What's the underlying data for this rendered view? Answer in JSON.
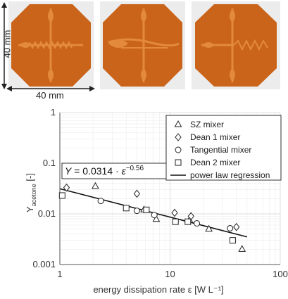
{
  "dimensions": {
    "vertical": "40 mm",
    "horizontal": "40 mm"
  },
  "photo": {
    "chip_color": "#c9641a",
    "channel_color": "#e48a3c",
    "background_color": "#ececec",
    "mixer_patterns": [
      "zigzag",
      "dean-curve",
      "tangential-serpentine"
    ]
  },
  "chart_data": {
    "type": "scatter",
    "xlabel": "energy dissipation rate ε [W L⁻¹]",
    "ylabel_main": "Y",
    "ylabel_sub": "acetone",
    "ylabel_unit": " [-]",
    "xscale": "log",
    "yscale": "log",
    "xlim": [
      1,
      100
    ],
    "ylim": [
      0.001,
      1
    ],
    "x_ticks": [
      1,
      10,
      100
    ],
    "x_tick_labels": [
      "1",
      "10",
      "100"
    ],
    "y_ticks": [
      0.001,
      0.01,
      0.1,
      1
    ],
    "y_tick_labels": [
      "0.001",
      "0.01",
      "0.1",
      "1"
    ],
    "grid": true,
    "legend_position": "top-right",
    "annotation": {
      "lhs": "Y",
      "equals": " = 0.0314 · ",
      "base": "ε",
      "exponent": "−0.56"
    },
    "series": [
      {
        "name": "SZ mixer",
        "marker": "triangle",
        "x": [
          2.1,
          5.8,
          7.5,
          15.0,
          22.5,
          45.0
        ],
        "y": [
          0.035,
          0.012,
          0.0078,
          0.0075,
          0.005,
          0.002
        ]
      },
      {
        "name": "Dean 1 mixer",
        "marker": "diamond",
        "x": [
          1.15,
          5.0,
          11.0,
          15.5,
          40.0
        ],
        "y": [
          0.033,
          0.025,
          0.0105,
          0.009,
          0.0055
        ]
      },
      {
        "name": "Tangential mixer",
        "marker": "circle",
        "x": [
          2.35,
          5.0,
          7.2,
          17.5,
          35.0
        ],
        "y": [
          0.018,
          0.0115,
          0.0095,
          0.0065,
          0.0052
        ]
      },
      {
        "name": "Dean 2 mixer",
        "marker": "square",
        "x": [
          1.05,
          4.0,
          6.1,
          11.2,
          14.5,
          37.0
        ],
        "y": [
          0.023,
          0.013,
          0.012,
          0.007,
          0.007,
          0.003
        ]
      }
    ],
    "regression": {
      "name": "power law regression",
      "coefficient": 0.0314,
      "exponent": -0.56,
      "x_range": [
        1,
        50
      ]
    }
  }
}
